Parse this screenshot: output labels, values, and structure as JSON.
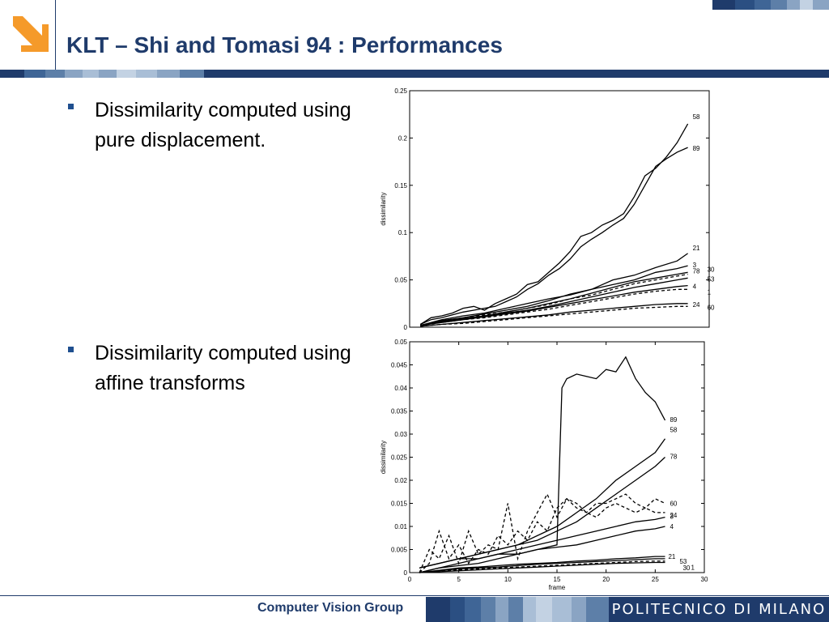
{
  "slide": {
    "title": "KLT – Shi and Tomasi 94 : Performances",
    "bullets": [
      "Dissimilarity computed using pure displacement.",
      "Dissimilarity computed using affine transforms"
    ],
    "footer_label": "Computer Vision Group",
    "footer_logo_text": "POLITECNICO DI MILANO",
    "logo_icon": "orange-arrow-icon"
  },
  "colors": {
    "title": "#1f3b6b",
    "logo": "#f59a2a",
    "band_dark": "#1f3b6b",
    "band_mid": "#5d7fa8",
    "band_light": "#a9bed6"
  },
  "chart_data": [
    {
      "type": "line",
      "title": "",
      "xlabel": "",
      "ylabel": "dissimilarity",
      "xlim": [
        0,
        28
      ],
      "ylim": [
        0,
        0.25
      ],
      "yticks": [
        "0",
        "0.05",
        "0.1",
        "0.15",
        "0.2",
        "0.25"
      ],
      "grid": false,
      "series": [
        {
          "name": "58",
          "style": "solid",
          "x": [
            1,
            2,
            3,
            4,
            5,
            6,
            7,
            8,
            9,
            10,
            11,
            12,
            13,
            14,
            15,
            16,
            17,
            18,
            19,
            20,
            21,
            22,
            23,
            24,
            25,
            26
          ],
          "y": [
            0.003,
            0.01,
            0.012,
            0.015,
            0.02,
            0.022,
            0.018,
            0.025,
            0.03,
            0.035,
            0.045,
            0.048,
            0.058,
            0.068,
            0.08,
            0.096,
            0.1,
            0.108,
            0.113,
            0.12,
            0.138,
            0.16,
            0.168,
            0.18,
            0.195,
            0.215
          ]
        },
        {
          "name": "89",
          "style": "solid",
          "x": [
            1,
            2,
            3,
            4,
            5,
            6,
            7,
            8,
            9,
            10,
            11,
            12,
            13,
            14,
            15,
            16,
            17,
            18,
            19,
            20,
            21,
            22,
            23,
            24,
            25,
            26
          ],
          "y": [
            0.003,
            0.008,
            0.01,
            0.013,
            0.016,
            0.018,
            0.02,
            0.022,
            0.027,
            0.032,
            0.04,
            0.046,
            0.055,
            0.062,
            0.072,
            0.085,
            0.093,
            0.1,
            0.108,
            0.115,
            0.13,
            0.15,
            0.17,
            0.178,
            0.185,
            0.19
          ]
        },
        {
          "name": "21",
          "style": "solid",
          "x": [
            1,
            3,
            5,
            7,
            9,
            11,
            13,
            15,
            17,
            19,
            21,
            23,
            25,
            26
          ],
          "y": [
            0.002,
            0.008,
            0.012,
            0.015,
            0.02,
            0.025,
            0.03,
            0.034,
            0.04,
            0.05,
            0.055,
            0.063,
            0.07,
            0.078
          ]
        },
        {
          "name": "3",
          "style": "solid",
          "x": [
            1,
            3,
            5,
            7,
            9,
            11,
            13,
            15,
            17,
            19,
            21,
            23,
            25,
            26
          ],
          "y": [
            0.002,
            0.007,
            0.01,
            0.014,
            0.018,
            0.022,
            0.028,
            0.035,
            0.04,
            0.045,
            0.05,
            0.058,
            0.062,
            0.065
          ]
        },
        {
          "name": "78",
          "style": "solid",
          "x": [
            1,
            3,
            5,
            7,
            9,
            11,
            13,
            15,
            17,
            19,
            21,
            23,
            25,
            26
          ],
          "y": [
            0.002,
            0.006,
            0.009,
            0.012,
            0.016,
            0.02,
            0.025,
            0.03,
            0.036,
            0.042,
            0.048,
            0.052,
            0.056,
            0.058
          ]
        },
        {
          "name": "30",
          "style": "dashed",
          "x": [
            1,
            3,
            5,
            7,
            9,
            11,
            13,
            15,
            17,
            19,
            21,
            23,
            25,
            26
          ],
          "y": [
            0.002,
            0.006,
            0.01,
            0.013,
            0.016,
            0.02,
            0.024,
            0.03,
            0.034,
            0.04,
            0.046,
            0.05,
            0.054,
            0.056
          ]
        },
        {
          "name": "53",
          "style": "solid",
          "x": [
            1,
            3,
            5,
            7,
            9,
            11,
            13,
            15,
            17,
            19,
            21,
            23,
            25,
            26
          ],
          "y": [
            0.002,
            0.006,
            0.009,
            0.012,
            0.015,
            0.018,
            0.022,
            0.027,
            0.032,
            0.037,
            0.042,
            0.046,
            0.05,
            0.052
          ]
        },
        {
          "name": "4",
          "style": "solid",
          "x": [
            1,
            3,
            5,
            7,
            9,
            11,
            13,
            15,
            17,
            19,
            21,
            23,
            25,
            26
          ],
          "y": [
            0.002,
            0.005,
            0.008,
            0.011,
            0.014,
            0.017,
            0.021,
            0.025,
            0.029,
            0.033,
            0.037,
            0.04,
            0.043,
            0.044
          ]
        },
        {
          "name": "1",
          "style": "dashed",
          "x": [
            1,
            3,
            5,
            7,
            9,
            11,
            13,
            15,
            17,
            19,
            21,
            23,
            25,
            26
          ],
          "y": [
            0.002,
            0.005,
            0.008,
            0.01,
            0.013,
            0.016,
            0.019,
            0.023,
            0.027,
            0.031,
            0.035,
            0.038,
            0.04,
            0.04
          ]
        },
        {
          "name": "24",
          "style": "solid",
          "x": [
            1,
            3,
            5,
            7,
            9,
            11,
            13,
            15,
            17,
            19,
            21,
            23,
            25,
            26
          ],
          "y": [
            0.001,
            0.003,
            0.005,
            0.007,
            0.009,
            0.011,
            0.013,
            0.016,
            0.018,
            0.02,
            0.022,
            0.024,
            0.025,
            0.025
          ]
        },
        {
          "name": "60",
          "style": "dashed",
          "x": [
            1,
            3,
            5,
            7,
            9,
            11,
            13,
            15,
            17,
            19,
            21,
            23,
            25,
            26
          ],
          "y": [
            0.001,
            0.003,
            0.004,
            0.006,
            0.008,
            0.01,
            0.012,
            0.014,
            0.016,
            0.018,
            0.02,
            0.021,
            0.022,
            0.022
          ]
        }
      ]
    },
    {
      "type": "line",
      "title": "",
      "xlabel": "frame",
      "ylabel": "dissimilarity",
      "xlim": [
        0,
        30
      ],
      "ylim": [
        0,
        0.05
      ],
      "xticks": [
        "0",
        "5",
        "10",
        "15",
        "20",
        "25",
        "30"
      ],
      "yticks": [
        "0",
        "0.005",
        "0.01",
        "0.015",
        "0.02",
        "0.025",
        "0.03",
        "0.035",
        "0.04",
        "0.045",
        "0.05"
      ],
      "grid": false,
      "series": [
        {
          "name": "89",
          "style": "solid",
          "x": [
            1,
            3,
            5,
            7,
            9,
            11,
            13,
            15,
            15.5,
            16,
            17,
            18,
            19,
            20,
            21,
            22,
            23,
            24,
            25,
            26
          ],
          "y": [
            0.001,
            0.002,
            0.003,
            0.003,
            0.004,
            0.004,
            0.005,
            0.006,
            0.04,
            0.042,
            0.043,
            0.0425,
            0.042,
            0.044,
            0.0435,
            0.0467,
            0.042,
            0.039,
            0.037,
            0.033
          ]
        },
        {
          "name": "58",
          "style": "solid",
          "x": [
            1,
            3,
            5,
            7,
            9,
            11,
            13,
            15,
            17,
            19,
            21,
            23,
            25,
            26
          ],
          "y": [
            0.001,
            0.002,
            0.003,
            0.004,
            0.005,
            0.006,
            0.008,
            0.01,
            0.013,
            0.016,
            0.02,
            0.023,
            0.026,
            0.029
          ]
        },
        {
          "name": "78",
          "style": "solid",
          "x": [
            1,
            3,
            5,
            7,
            9,
            11,
            13,
            15,
            17,
            19,
            21,
            23,
            25,
            26
          ],
          "y": [
            0.001,
            0.002,
            0.003,
            0.004,
            0.005,
            0.006,
            0.007,
            0.009,
            0.011,
            0.014,
            0.017,
            0.02,
            0.023,
            0.025
          ]
        },
        {
          "name": "60",
          "style": "dashed",
          "x": [
            1,
            2,
            3,
            4,
            5,
            6,
            7,
            8,
            9,
            10,
            11,
            12,
            13,
            14,
            15,
            16,
            17,
            18,
            19,
            20,
            21,
            22,
            23,
            24,
            25,
            26
          ],
          "y": [
            0.0,
            0.005,
            0.003,
            0.008,
            0.002,
            0.009,
            0.004,
            0.006,
            0.005,
            0.015,
            0.003,
            0.009,
            0.013,
            0.017,
            0.012,
            0.016,
            0.014,
            0.013,
            0.015,
            0.015,
            0.016,
            0.017,
            0.015,
            0.014,
            0.016,
            0.015
          ]
        },
        {
          "name": "24",
          "style": "dashed",
          "x": [
            1,
            2,
            3,
            4,
            5,
            6,
            7,
            8,
            9,
            10,
            11,
            12,
            13,
            14,
            15,
            16,
            17,
            18,
            19,
            20,
            21,
            22,
            23,
            24,
            25,
            26
          ],
          "y": [
            0.0,
            0.002,
            0.009,
            0.003,
            0.006,
            0.002,
            0.005,
            0.004,
            0.008,
            0.006,
            0.009,
            0.007,
            0.011,
            0.009,
            0.014,
            0.016,
            0.015,
            0.013,
            0.012,
            0.014,
            0.015,
            0.014,
            0.013,
            0.014,
            0.013,
            0.013
          ]
        },
        {
          "name": "3",
          "style": "solid",
          "x": [
            1,
            3,
            5,
            7,
            9,
            11,
            13,
            15,
            17,
            19,
            21,
            23,
            25,
            26
          ],
          "y": [
            0.0,
            0.001,
            0.002,
            0.003,
            0.004,
            0.005,
            0.006,
            0.007,
            0.008,
            0.009,
            0.01,
            0.011,
            0.0115,
            0.012
          ]
        },
        {
          "name": "4",
          "style": "solid",
          "x": [
            1,
            3,
            5,
            7,
            9,
            11,
            13,
            15,
            17,
            19,
            21,
            23,
            25,
            26
          ],
          "y": [
            0.0,
            0.001,
            0.0015,
            0.002,
            0.003,
            0.004,
            0.005,
            0.0055,
            0.006,
            0.007,
            0.008,
            0.009,
            0.0095,
            0.01
          ]
        },
        {
          "name": "21",
          "style": "solid",
          "x": [
            1,
            3,
            5,
            7,
            9,
            11,
            13,
            15,
            17,
            19,
            21,
            23,
            25,
            26
          ],
          "y": [
            0.0,
            0.0005,
            0.001,
            0.0012,
            0.0015,
            0.0018,
            0.002,
            0.0022,
            0.0025,
            0.0027,
            0.003,
            0.0032,
            0.0035,
            0.0035
          ]
        },
        {
          "name": "53",
          "style": "solid",
          "x": [
            1,
            3,
            5,
            7,
            9,
            11,
            13,
            15,
            17,
            19,
            21,
            23,
            25,
            26
          ],
          "y": [
            0.0,
            0.0004,
            0.0008,
            0.001,
            0.0012,
            0.0015,
            0.0018,
            0.002,
            0.0022,
            0.0024,
            0.0026,
            0.0028,
            0.003,
            0.003
          ]
        },
        {
          "name": "30",
          "style": "dashed",
          "x": [
            1,
            3,
            5,
            7,
            9,
            11,
            13,
            15,
            17,
            19,
            21,
            23,
            25,
            26
          ],
          "y": [
            0.0,
            0.0003,
            0.0006,
            0.0008,
            0.001,
            0.0012,
            0.0014,
            0.0016,
            0.0018,
            0.002,
            0.0022,
            0.0024,
            0.0025,
            0.0025
          ]
        },
        {
          "name": "1",
          "style": "solid",
          "x": [
            1,
            3,
            5,
            7,
            9,
            11,
            13,
            15,
            17,
            19,
            21,
            23,
            25,
            26
          ],
          "y": [
            0.0,
            0.0002,
            0.0004,
            0.0006,
            0.0008,
            0.001,
            0.0012,
            0.0014,
            0.0016,
            0.0018,
            0.002,
            0.0021,
            0.0022,
            0.0022
          ]
        }
      ]
    }
  ]
}
